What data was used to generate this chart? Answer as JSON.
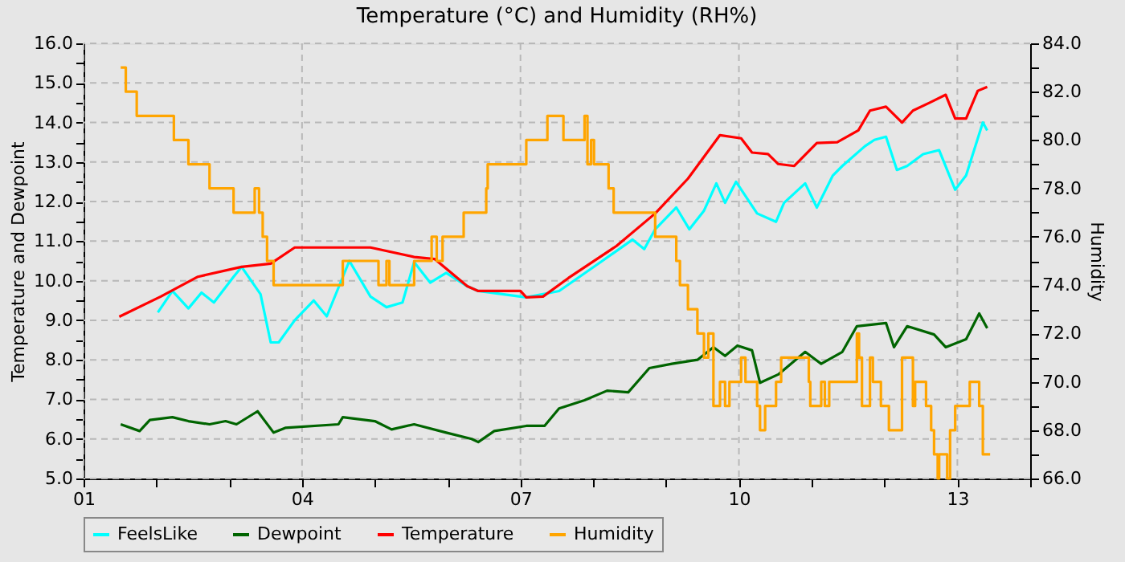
{
  "chart_data": {
    "type": "line",
    "title": "Temperature (°C) and Humidity (RH%)",
    "ylabel": "Temperature and Dewpoint",
    "y2label": "Humidity",
    "xlim": [
      1,
      14
    ],
    "xticks": [
      {
        "value": 1,
        "label": "01"
      },
      {
        "value": 2,
        "label": null
      },
      {
        "value": 3,
        "label": null
      },
      {
        "value": 4,
        "label": "04"
      },
      {
        "value": 5,
        "label": null
      },
      {
        "value": 6,
        "label": null
      },
      {
        "value": 7,
        "label": "07"
      },
      {
        "value": 8,
        "label": null
      },
      {
        "value": 9,
        "label": null
      },
      {
        "value": 10,
        "label": "10"
      },
      {
        "value": 11,
        "label": null
      },
      {
        "value": 12,
        "label": null
      },
      {
        "value": 13,
        "label": "13"
      },
      {
        "value": 14,
        "label": null
      }
    ],
    "ylim": [
      5,
      16
    ],
    "yticks": [
      {
        "value": 5,
        "label": "5.0"
      },
      {
        "value": 5.5,
        "label": null
      },
      {
        "value": 6,
        "label": "6.0"
      },
      {
        "value": 6.5,
        "label": null
      },
      {
        "value": 7,
        "label": "7.0"
      },
      {
        "value": 7.5,
        "label": null
      },
      {
        "value": 8,
        "label": "8.0"
      },
      {
        "value": 8.5,
        "label": null
      },
      {
        "value": 9,
        "label": "9.0"
      },
      {
        "value": 9.5,
        "label": null
      },
      {
        "value": 10,
        "label": "10.0"
      },
      {
        "value": 10.5,
        "label": null
      },
      {
        "value": 11,
        "label": "11.0"
      },
      {
        "value": 11.5,
        "label": null
      },
      {
        "value": 12,
        "label": "12.0"
      },
      {
        "value": 12.5,
        "label": null
      },
      {
        "value": 13,
        "label": "13.0"
      },
      {
        "value": 13.5,
        "label": null
      },
      {
        "value": 14,
        "label": "14.0"
      },
      {
        "value": 14.5,
        "label": null
      },
      {
        "value": 15,
        "label": "15.0"
      },
      {
        "value": 15.5,
        "label": null
      },
      {
        "value": 16,
        "label": "16.0"
      }
    ],
    "y2lim": [
      66,
      84
    ],
    "y2ticks": [
      {
        "value": 66,
        "label": "66.0"
      },
      {
        "value": 67,
        "label": null
      },
      {
        "value": 68,
        "label": "68.0"
      },
      {
        "value": 69,
        "label": null
      },
      {
        "value": 70,
        "label": "70.0"
      },
      {
        "value": 71,
        "label": null
      },
      {
        "value": 72,
        "label": "72.0"
      },
      {
        "value": 73,
        "label": null
      },
      {
        "value": 74,
        "label": "74.0"
      },
      {
        "value": 75,
        "label": null
      },
      {
        "value": 76,
        "label": "76.0"
      },
      {
        "value": 77,
        "label": null
      },
      {
        "value": 78,
        "label": "78.0"
      },
      {
        "value": 79,
        "label": null
      },
      {
        "value": 80,
        "label": "80.0"
      },
      {
        "value": 81,
        "label": null
      },
      {
        "value": 82,
        "label": "82.0"
      },
      {
        "value": 83,
        "label": null
      },
      {
        "value": 84,
        "label": "84.0"
      }
    ],
    "grid": true,
    "legend": "bottom",
    "line_style": "solid",
    "marker": "none",
    "series": [
      {
        "name": "FeelsLike",
        "color": "#00ffff",
        "type": "line",
        "x": [
          2.02,
          2.22,
          2.44,
          2.62,
          2.79,
          3.06,
          3.17,
          3.43,
          3.57,
          3.68,
          3.9,
          4.16,
          4.34,
          4.65,
          4.94,
          5.16,
          5.38,
          5.54,
          5.76,
          5.98,
          6.27,
          6.42,
          7.08,
          7.53,
          8.1,
          8.54,
          8.7,
          8.85,
          9.14,
          9.32,
          9.52,
          9.69,
          9.81,
          9.96,
          10.25,
          10.51,
          10.62,
          10.91,
          11.07,
          11.29,
          11.42,
          11.73,
          11.86,
          12.02,
          12.17,
          12.31,
          12.53,
          12.75,
          12.97,
          13.12,
          13.35,
          13.41
        ],
        "values": [
          9.2,
          9.74,
          9.3,
          9.7,
          9.45,
          10.1,
          10.35,
          9.66,
          8.44,
          8.44,
          9.0,
          9.5,
          9.1,
          10.5,
          9.6,
          9.33,
          9.45,
          10.47,
          9.95,
          10.2,
          9.86,
          9.74,
          9.58,
          9.74,
          10.47,
          11.04,
          10.8,
          11.3,
          11.85,
          11.3,
          11.77,
          12.46,
          11.97,
          12.5,
          11.7,
          11.49,
          11.97,
          12.46,
          11.85,
          12.66,
          12.9,
          13.4,
          13.56,
          13.64,
          12.8,
          12.9,
          13.2,
          13.3,
          12.3,
          12.66,
          14.0,
          13.8
        ]
      },
      {
        "name": "Dewpoint",
        "color": "#006400",
        "type": "line",
        "x": [
          1.51,
          1.77,
          1.91,
          2.22,
          2.44,
          2.73,
          2.95,
          3.1,
          3.39,
          3.61,
          3.77,
          4.5,
          4.56,
          5.0,
          5.23,
          5.54,
          5.98,
          6.33,
          6.42,
          6.64,
          7.08,
          7.33,
          7.53,
          7.88,
          8.19,
          8.48,
          8.77,
          9.08,
          9.43,
          9.65,
          9.81,
          9.98,
          10.18,
          10.29,
          10.54,
          10.91,
          11.13,
          11.42,
          11.62,
          12.02,
          12.13,
          12.31,
          12.68,
          12.84,
          13.12,
          13.3,
          13.41
        ],
        "values": [
          6.37,
          6.2,
          6.48,
          6.55,
          6.45,
          6.37,
          6.45,
          6.37,
          6.7,
          6.16,
          6.28,
          6.37,
          6.55,
          6.45,
          6.24,
          6.37,
          6.16,
          6.0,
          5.92,
          6.2,
          6.33,
          6.33,
          6.77,
          6.98,
          7.22,
          7.18,
          7.79,
          7.9,
          8.0,
          8.32,
          8.1,
          8.36,
          8.24,
          7.42,
          7.63,
          8.2,
          7.9,
          8.2,
          8.85,
          8.93,
          8.32,
          8.85,
          8.64,
          8.32,
          8.52,
          9.17,
          8.8
        ]
      },
      {
        "name": "Temperature",
        "color": "#ff0000",
        "type": "line",
        "x": [
          1.49,
          2.06,
          2.57,
          3.17,
          3.57,
          3.9,
          4.94,
          5.54,
          5.82,
          6.27,
          6.42,
          7.0,
          7.08,
          7.31,
          7.66,
          8.32,
          8.85,
          9.3,
          9.74,
          10.03,
          10.18,
          10.4,
          10.54,
          10.76,
          11.07,
          11.35,
          11.64,
          11.8,
          12.02,
          12.24,
          12.39,
          12.62,
          12.84,
          12.97,
          13.12,
          13.28,
          13.41
        ],
        "values": [
          9.09,
          9.6,
          10.1,
          10.35,
          10.43,
          10.84,
          10.84,
          10.6,
          10.55,
          9.86,
          9.74,
          9.74,
          9.58,
          9.6,
          10.07,
          10.88,
          11.7,
          12.58,
          13.68,
          13.6,
          13.24,
          13.2,
          12.95,
          12.9,
          13.48,
          13.5,
          13.8,
          14.3,
          14.4,
          14.0,
          14.3,
          14.5,
          14.7,
          14.1,
          14.1,
          14.8,
          14.9
        ]
      },
      {
        "name": "Humidity",
        "color": "#ffa500",
        "type": "step",
        "axis": "y2",
        "x": [
          1.51,
          1.58,
          1.73,
          2.24,
          2.44,
          2.73,
          3.06,
          3.35,
          3.41,
          3.46,
          3.52,
          3.61,
          4.56,
          5.05,
          5.16,
          5.2,
          5.54,
          5.78,
          5.85,
          5.93,
          6.22,
          6.53,
          6.55,
          7.08,
          7.37,
          7.59,
          7.88,
          7.92,
          7.97,
          8.01,
          8.21,
          8.28,
          8.85,
          9.14,
          9.19,
          9.3,
          9.43,
          9.52,
          9.58,
          9.65,
          9.74,
          9.81,
          9.87,
          10.03,
          10.09,
          10.25,
          10.29,
          10.36,
          10.51,
          10.58,
          10.96,
          10.98,
          11.13,
          11.18,
          11.24,
          11.62,
          11.65,
          11.69,
          11.8,
          11.84,
          11.95,
          12.06,
          12.24,
          12.39,
          12.42,
          12.57,
          12.64,
          12.68,
          12.73,
          12.75,
          12.86,
          12.9,
          12.97,
          13.17,
          13.3,
          13.35,
          13.45
        ],
        "values": [
          83,
          82,
          81,
          80,
          79,
          78,
          77,
          78,
          77,
          76,
          75,
          74,
          75,
          74,
          75,
          74,
          75,
          76,
          75,
          76,
          77,
          78,
          79,
          80,
          81,
          80,
          81,
          79,
          80,
          79,
          78,
          77,
          76,
          75,
          74,
          73,
          72,
          71,
          72,
          69,
          70,
          69,
          70,
          71,
          70,
          69,
          68,
          69,
          70,
          71,
          70,
          69,
          70,
          69,
          70,
          72,
          71,
          69,
          71,
          70,
          69,
          68,
          71,
          69,
          70,
          69,
          68,
          67,
          66,
          67,
          66,
          68,
          69,
          70,
          69,
          67,
          67
        ]
      }
    ]
  }
}
